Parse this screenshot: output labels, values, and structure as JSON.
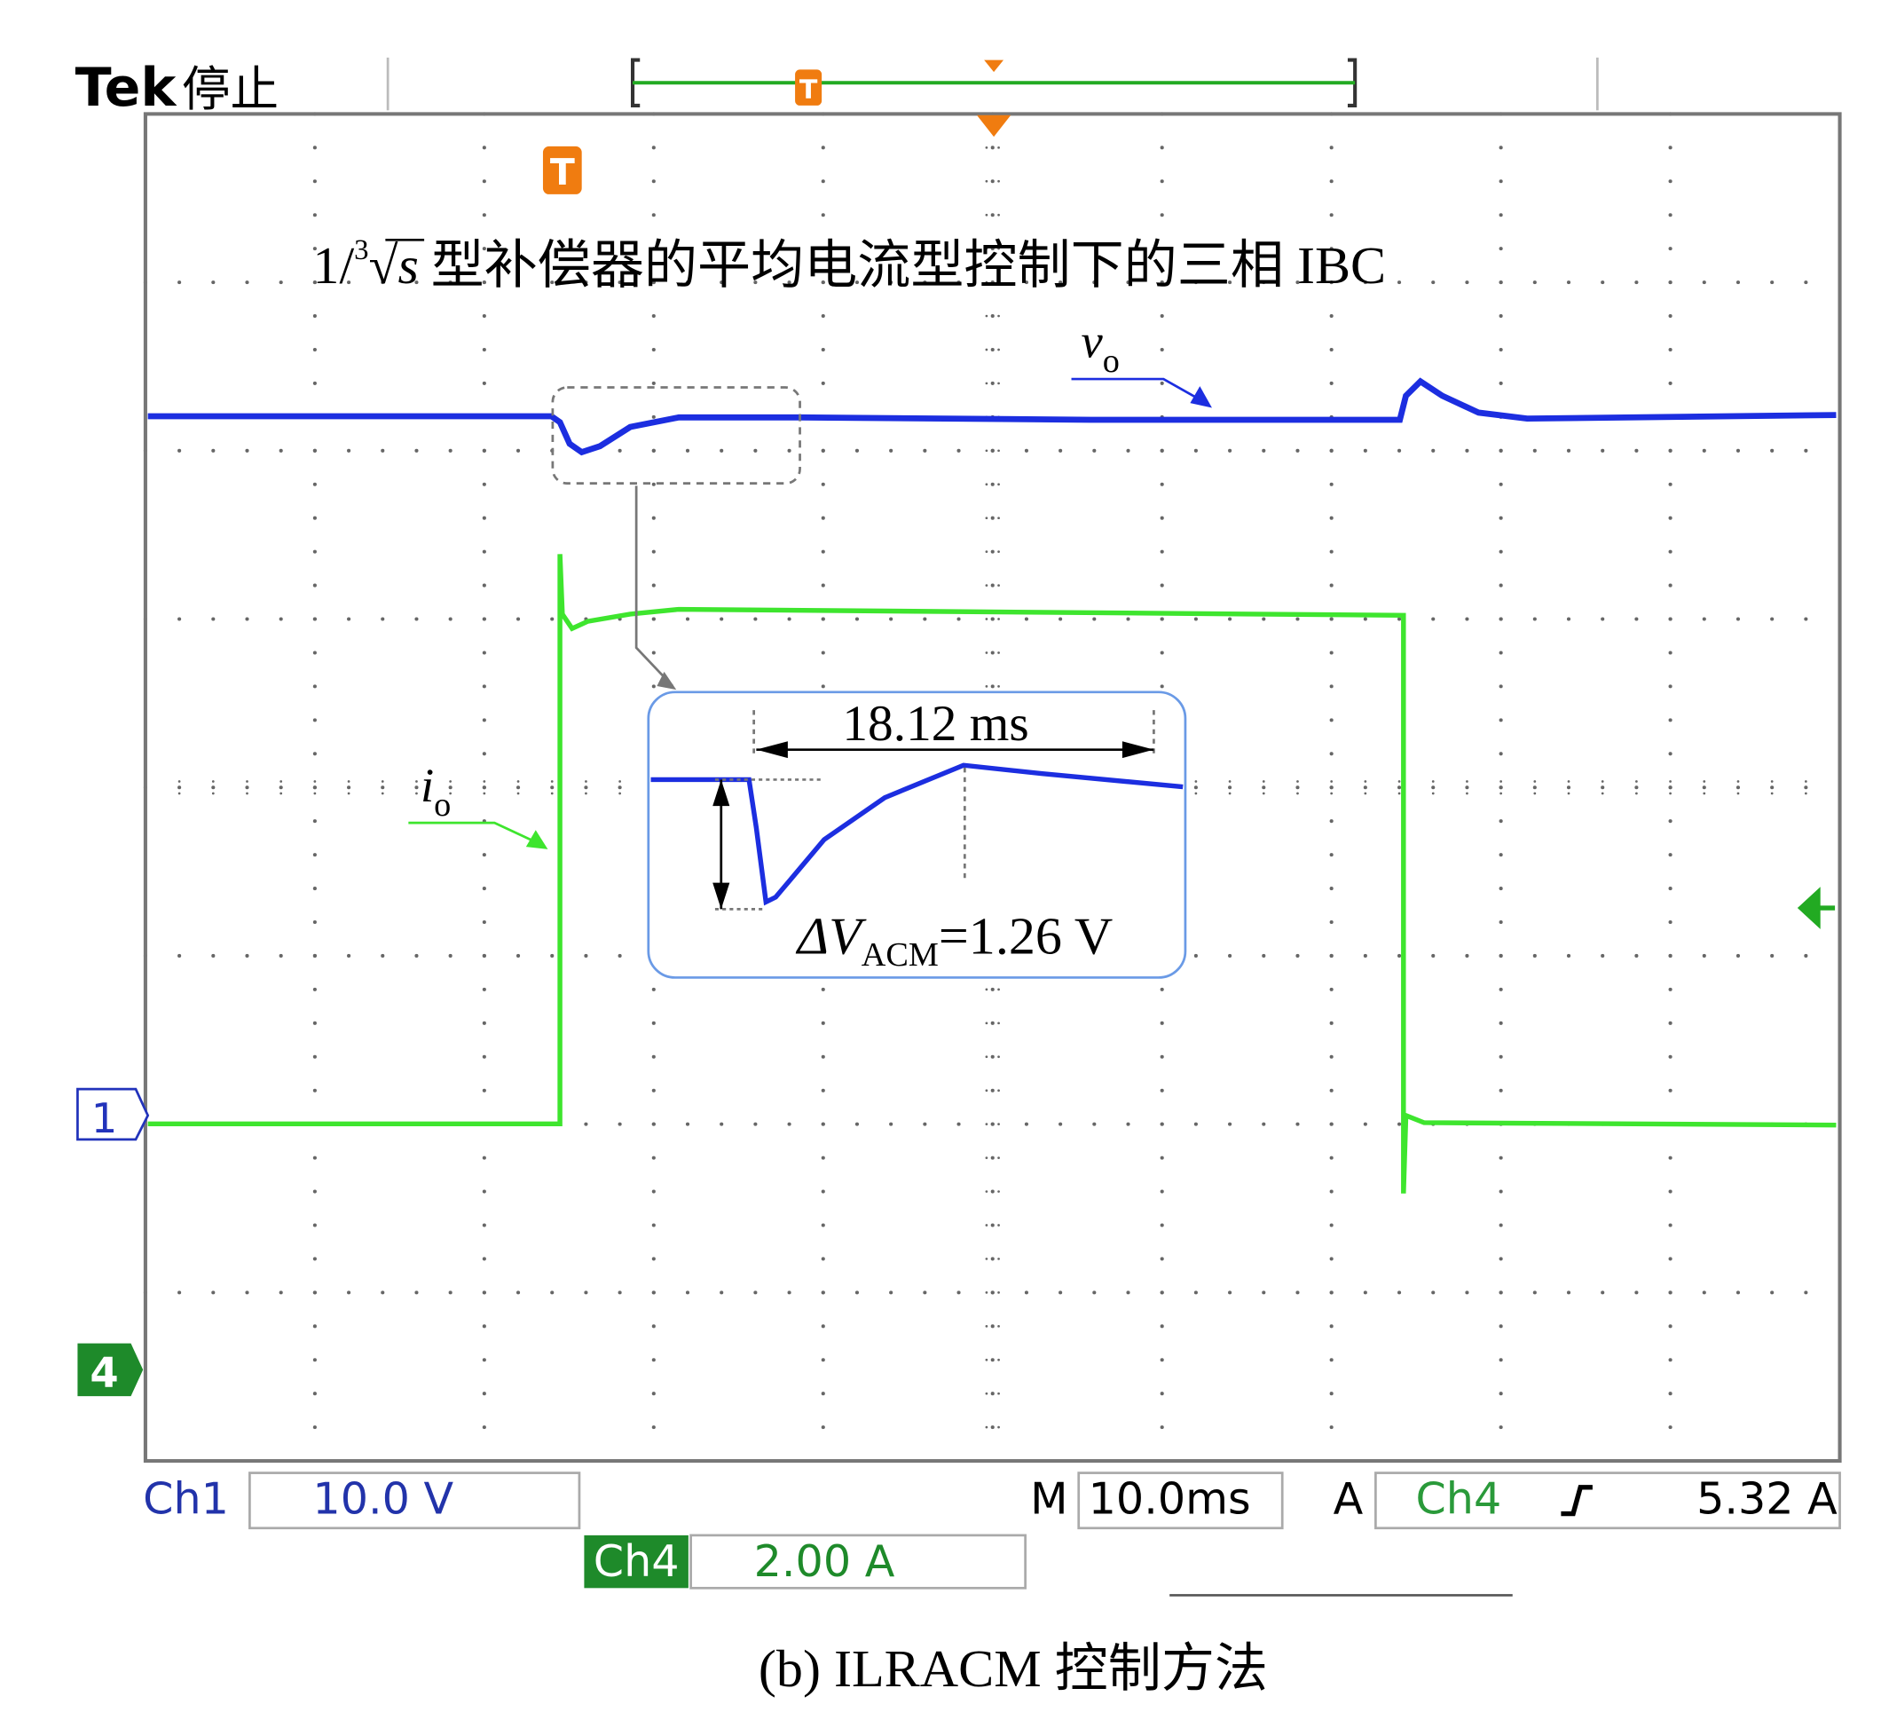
{
  "header": {
    "brand": "Tek",
    "status": "停止",
    "trigger_marker": "T"
  },
  "title": {
    "prefix": "1/",
    "root_index": "3",
    "root_symbol": "√",
    "radicand": "s",
    "text": "型补偿器的平均电流型控制下的三相 IBC"
  },
  "traces": {
    "vo": {
      "symbol": "v",
      "subscript": "o"
    },
    "io": {
      "symbol": "i",
      "subscript": "o"
    }
  },
  "inset": {
    "duration": "18.12 ms",
    "delta_symbol": "ΔV",
    "delta_subscript": "ACM",
    "delta_value": "=1.26 V"
  },
  "channel_markers": [
    "1",
    "4"
  ],
  "status_bar": {
    "ch1_label": "Ch1",
    "ch1_scale": "10.0 V",
    "time_prefix": "M",
    "time_scale": "10.0ms",
    "trigger_mode": "A",
    "trigger_channel": "Ch4",
    "trigger_level": "5.32 A",
    "ch4_label": "Ch4",
    "ch4_scale": "2.00 A"
  },
  "caption": "(b) ILRACM 控制方法"
}
